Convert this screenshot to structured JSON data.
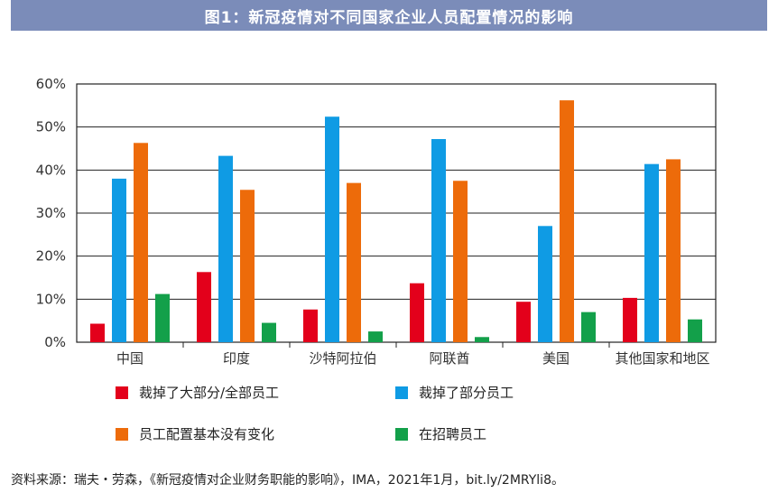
{
  "title": "图1：新冠疫情对不同国家企业人员配置情况的影响",
  "source": "资料来源：瑞夫・劳森，《新冠疫情对企业财务职能的影响》，IMA，2021年1月，bit.ly/2MRYli8。",
  "chart_data": {
    "type": "bar",
    "categories": [
      "中国",
      "印度",
      "沙特阿拉伯",
      "阿联酋",
      "美国",
      "其他国家和地区"
    ],
    "series": [
      {
        "name": "裁掉了大部分/全部员工",
        "values": [
          4.3,
          16.3,
          7.6,
          13.7,
          9.4,
          10.3
        ],
        "color": "#e3001b"
      },
      {
        "name": "裁掉了部分员工",
        "values": [
          38,
          43.3,
          52.4,
          47.2,
          27,
          41.4
        ],
        "color": "#0f9be4"
      },
      {
        "name": "员工配置基本没有变化",
        "values": [
          46.3,
          35.4,
          37,
          37.5,
          56.2,
          42.5
        ],
        "color": "#ed6b0a"
      },
      {
        "name": "在招聘员工",
        "values": [
          11.2,
          4.5,
          2.5,
          1.2,
          7,
          5.3
        ],
        "color": "#13a04a"
      }
    ],
    "yticks": [
      "0%",
      "10%",
      "20%",
      "30%",
      "40%",
      "50%",
      "60%"
    ],
    "ylim": [
      0,
      60
    ],
    "grid": true,
    "legend": "bottom"
  }
}
